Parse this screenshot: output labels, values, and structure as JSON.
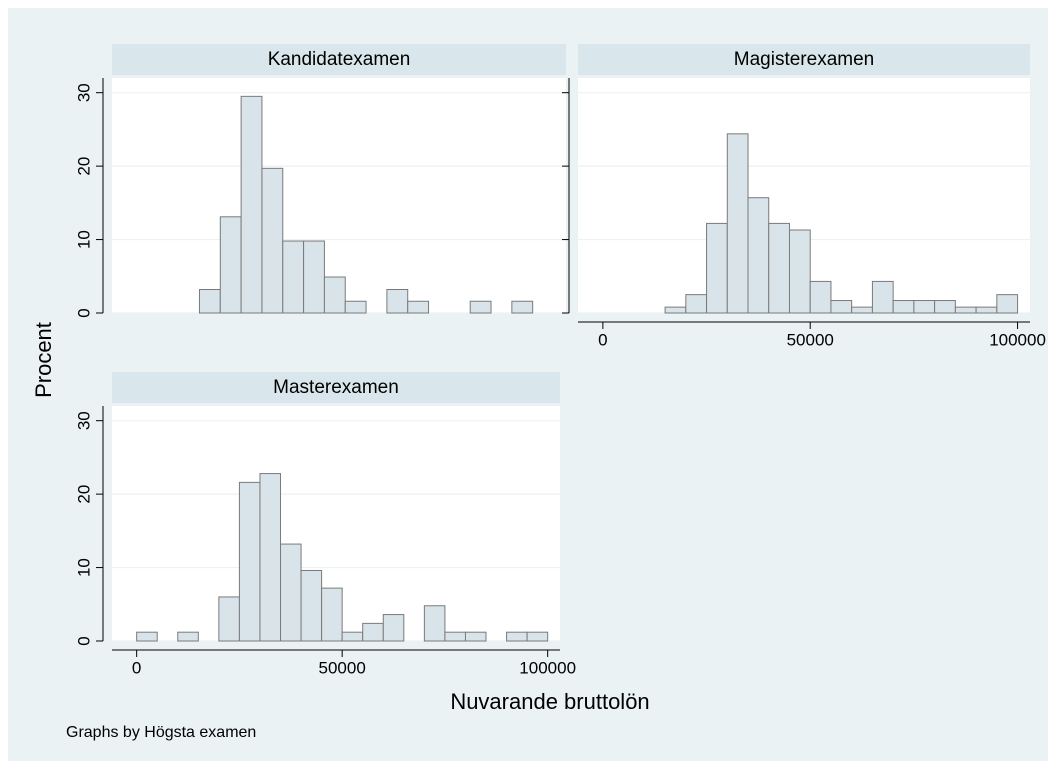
{
  "ylabel": "Procent",
  "xlabel": "Nuvarande bruttolön",
  "note": "Graphs by Högsta examen",
  "chart_data": [
    {
      "type": "histogram",
      "title": "Kandidatexamen",
      "bins": [
        0,
        5000,
        10000,
        15000,
        20000,
        25000,
        30000,
        35000,
        40000,
        45000,
        50000,
        55000,
        60000,
        65000,
        70000,
        75000,
        80000,
        85000,
        90000,
        95000,
        100000
      ],
      "values": [
        0,
        0,
        0,
        3.2,
        13.1,
        29.5,
        19.7,
        9.8,
        9.8,
        4.9,
        1.6,
        0,
        3.2,
        1.6,
        0,
        0,
        1.6,
        0,
        1.6,
        0
      ],
      "color": "#d8e4ea",
      "edgecolor": "#7a7a7a",
      "xlim": [
        -6000,
        103000
      ],
      "xticks": [
        0,
        50000,
        100000
      ],
      "xtick_labels": false,
      "ylim": [
        0,
        32
      ],
      "yticks": [
        0,
        10,
        20,
        30
      ],
      "ytick_labels": true,
      "grid": true
    },
    {
      "type": "histogram",
      "title": "Magisterexamen",
      "bins": [
        0,
        5000,
        10000,
        15000,
        20000,
        25000,
        30000,
        35000,
        40000,
        45000,
        50000,
        55000,
        60000,
        65000,
        70000,
        75000,
        80000,
        85000,
        90000,
        95000,
        100000
      ],
      "values": [
        0,
        0,
        0,
        0.8,
        2.5,
        12.2,
        24.4,
        15.7,
        12.2,
        11.3,
        4.3,
        1.7,
        0.8,
        4.3,
        1.7,
        1.7,
        1.7,
        0.8,
        0.8,
        2.5
      ],
      "color": "#d8e4ea",
      "edgecolor": "#7a7a7a",
      "xlim": [
        -6000,
        103000
      ],
      "xticks": [
        0,
        50000,
        100000
      ],
      "xtick_labels": true,
      "ylim": [
        0,
        32
      ],
      "yticks": [
        0,
        10,
        20,
        30
      ],
      "ytick_labels": false,
      "grid": true
    },
    {
      "type": "histogram",
      "title": "Masterexamen",
      "bins": [
        0,
        5000,
        10000,
        15000,
        20000,
        25000,
        30000,
        35000,
        40000,
        45000,
        50000,
        55000,
        60000,
        65000,
        70000,
        75000,
        80000,
        85000,
        90000,
        95000,
        100000
      ],
      "values": [
        1.2,
        0,
        1.2,
        0,
        6,
        21.6,
        22.8,
        13.2,
        9.6,
        7.2,
        1.2,
        2.4,
        3.6,
        0,
        4.8,
        1.2,
        1.2,
        0,
        1.2,
        1.2
      ],
      "color": "#d8e4ea",
      "edgecolor": "#7a7a7a",
      "xlim": [
        -6000,
        103000
      ],
      "xticks": [
        0,
        50000,
        100000
      ],
      "xtick_labels": true,
      "ylim": [
        0,
        32
      ],
      "yticks": [
        0,
        10,
        20,
        30
      ],
      "ytick_labels": true,
      "grid": true
    }
  ]
}
